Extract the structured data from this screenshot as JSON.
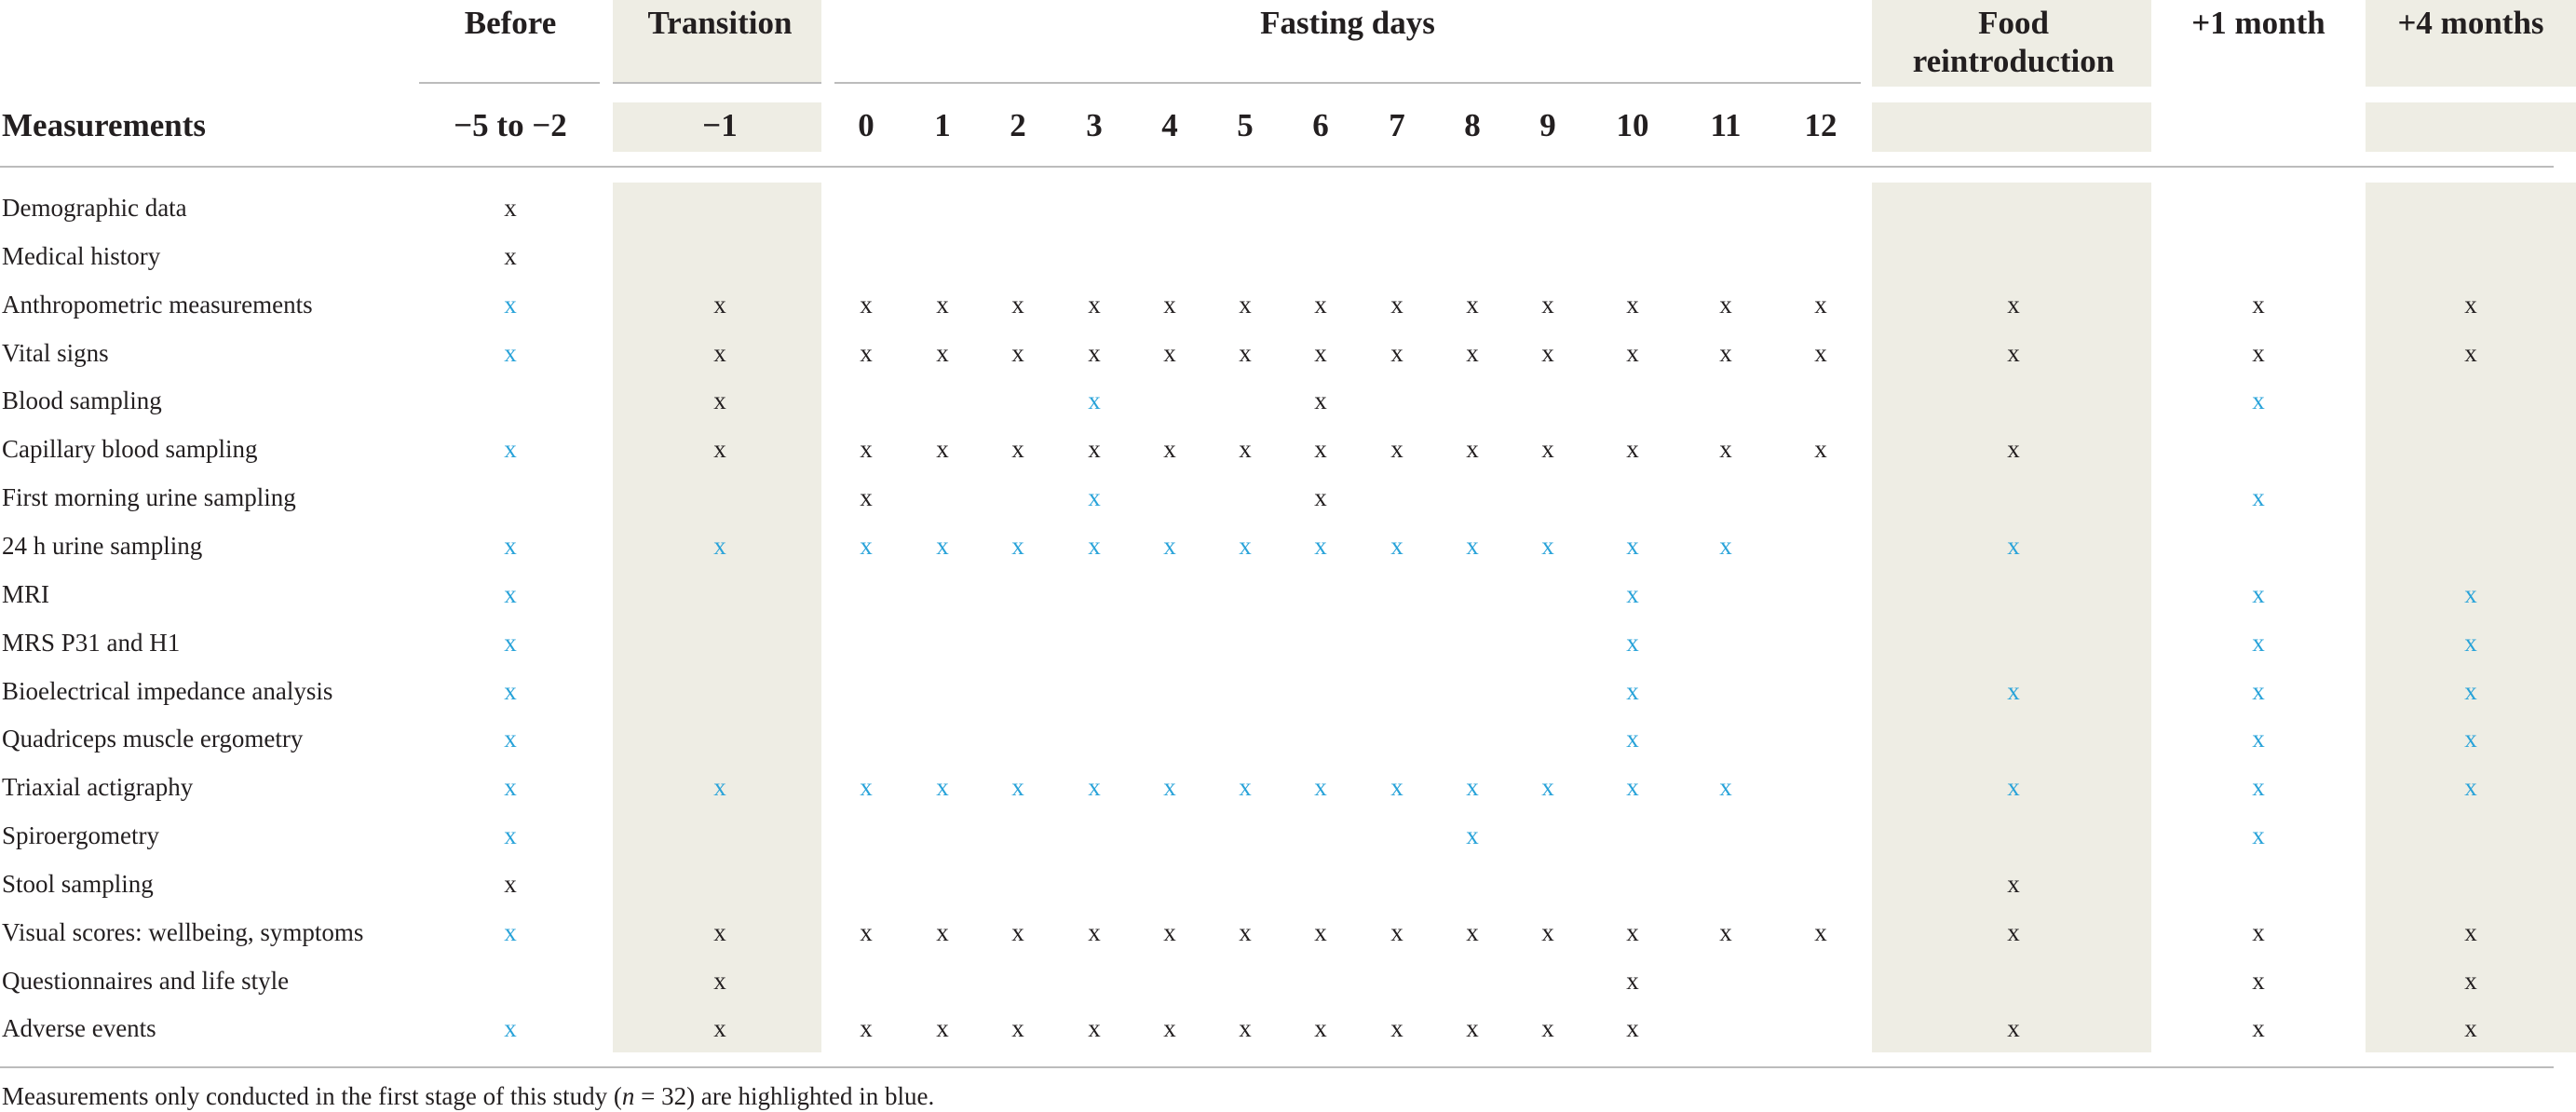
{
  "colors": {
    "shade": "#eeede4",
    "highlight_blue": "#29a3d9",
    "text": "#231f20"
  },
  "groups": {
    "before": "Before",
    "transition": "Transition",
    "fasting": "Fasting days",
    "food_line1": "Food",
    "food_line2": "reintroduction",
    "plus1": "+1 month",
    "plus4": "+4 months"
  },
  "measurements_header": "Measurements",
  "columns": [
    {
      "key": "before",
      "label": "−5 to −2"
    },
    {
      "key": "transition",
      "label": "−1"
    },
    {
      "key": "d0",
      "label": "0"
    },
    {
      "key": "d1",
      "label": "1"
    },
    {
      "key": "d2",
      "label": "2"
    },
    {
      "key": "d3",
      "label": "3"
    },
    {
      "key": "d4",
      "label": "4"
    },
    {
      "key": "d5",
      "label": "5"
    },
    {
      "key": "d6",
      "label": "6"
    },
    {
      "key": "d7",
      "label": "7"
    },
    {
      "key": "d8",
      "label": "8"
    },
    {
      "key": "d9",
      "label": "9"
    },
    {
      "key": "d10",
      "label": "10"
    },
    {
      "key": "d11",
      "label": "11"
    },
    {
      "key": "d12",
      "label": "12"
    },
    {
      "key": "food",
      "label": ""
    },
    {
      "key": "plus1",
      "label": ""
    },
    {
      "key": "plus4",
      "label": ""
    }
  ],
  "mark_symbol": "x",
  "rows": [
    {
      "label": "Demographic data",
      "marks": [
        "k",
        "",
        "",
        "",
        "",
        "",
        "",
        "",
        "",
        "",
        "",
        "",
        "",
        "",
        "",
        "",
        "",
        ""
      ]
    },
    {
      "label": "Medical history",
      "marks": [
        "k",
        "",
        "",
        "",
        "",
        "",
        "",
        "",
        "",
        "",
        "",
        "",
        "",
        "",
        "",
        "",
        "",
        ""
      ]
    },
    {
      "label": "Anthropometric measurements",
      "marks": [
        "b",
        "k",
        "k",
        "k",
        "k",
        "k",
        "k",
        "k",
        "k",
        "k",
        "k",
        "k",
        "k",
        "k",
        "k",
        "k",
        "k",
        "k"
      ]
    },
    {
      "label": "Vital signs",
      "marks": [
        "b",
        "k",
        "k",
        "k",
        "k",
        "k",
        "k",
        "k",
        "k",
        "k",
        "k",
        "k",
        "k",
        "k",
        "k",
        "k",
        "k",
        "k"
      ]
    },
    {
      "label": "Blood sampling",
      "marks": [
        "",
        "k",
        "",
        "",
        "",
        "b",
        "",
        "",
        "k",
        "",
        "",
        "",
        "",
        "",
        "",
        "",
        "b",
        ""
      ]
    },
    {
      "label": "Capillary blood sampling",
      "marks": [
        "b",
        "k",
        "k",
        "k",
        "k",
        "k",
        "k",
        "k",
        "k",
        "k",
        "k",
        "k",
        "k",
        "k",
        "k",
        "k",
        "",
        ""
      ]
    },
    {
      "label": "First morning urine sampling",
      "marks": [
        "",
        "",
        "k",
        "",
        "",
        "b",
        "",
        "",
        "k",
        "",
        "",
        "",
        "",
        "",
        "",
        "",
        "b",
        ""
      ]
    },
    {
      "label": "24 h urine sampling",
      "marks": [
        "b",
        "b",
        "b",
        "b",
        "b",
        "b",
        "b",
        "b",
        "b",
        "b",
        "b",
        "b",
        "b",
        "b",
        "",
        "b",
        "",
        ""
      ]
    },
    {
      "label": "MRI",
      "marks": [
        "b",
        "",
        "",
        "",
        "",
        "",
        "",
        "",
        "",
        "",
        "",
        "",
        "b",
        "",
        "",
        "",
        "b",
        "b"
      ]
    },
    {
      "label": "MRS P31 and H1",
      "marks": [
        "b",
        "",
        "",
        "",
        "",
        "",
        "",
        "",
        "",
        "",
        "",
        "",
        "b",
        "",
        "",
        "",
        "b",
        "b"
      ]
    },
    {
      "label": "Bioelectrical impedance analysis",
      "marks": [
        "b",
        "",
        "",
        "",
        "",
        "",
        "",
        "",
        "",
        "",
        "",
        "",
        "b",
        "",
        "",
        "b",
        "b",
        "b"
      ]
    },
    {
      "label": "Quadriceps muscle ergometry",
      "marks": [
        "b",
        "",
        "",
        "",
        "",
        "",
        "",
        "",
        "",
        "",
        "",
        "",
        "b",
        "",
        "",
        "",
        "b",
        "b"
      ]
    },
    {
      "label": "Triaxial actigraphy",
      "marks": [
        "b",
        "b",
        "b",
        "b",
        "b",
        "b",
        "b",
        "b",
        "b",
        "b",
        "b",
        "b",
        "b",
        "b",
        "",
        "b",
        "b",
        "b"
      ]
    },
    {
      "label": "Spiroergometry",
      "marks": [
        "b",
        "",
        "",
        "",
        "",
        "",
        "",
        "",
        "",
        "",
        "b",
        "",
        "",
        "",
        "",
        "",
        "b",
        ""
      ]
    },
    {
      "label": "Stool sampling",
      "marks": [
        "k",
        "",
        "",
        "",
        "",
        "",
        "",
        "",
        "",
        "",
        "",
        "",
        "",
        "",
        "",
        "k",
        "",
        ""
      ]
    },
    {
      "label": "Visual scores: wellbeing, symptoms",
      "marks": [
        "b",
        "k",
        "k",
        "k",
        "k",
        "k",
        "k",
        "k",
        "k",
        "k",
        "k",
        "k",
        "k",
        "k",
        "k",
        "k",
        "k",
        "k"
      ]
    },
    {
      "label": "Questionnaires and life style",
      "marks": [
        "",
        "k",
        "",
        "",
        "",
        "",
        "",
        "",
        "",
        "",
        "",
        "",
        "k",
        "",
        "",
        "",
        "k",
        "k"
      ]
    },
    {
      "label": "Adverse events",
      "marks": [
        "b",
        "k",
        "k",
        "k",
        "k",
        "k",
        "k",
        "k",
        "k",
        "k",
        "k",
        "k",
        "k",
        "",
        "",
        "k",
        "k",
        "k"
      ]
    }
  ],
  "footnote": {
    "before": "Measurements only conducted in the first stage of this study (",
    "n": "n",
    "after": " = 32) are highlighted in blue."
  }
}
